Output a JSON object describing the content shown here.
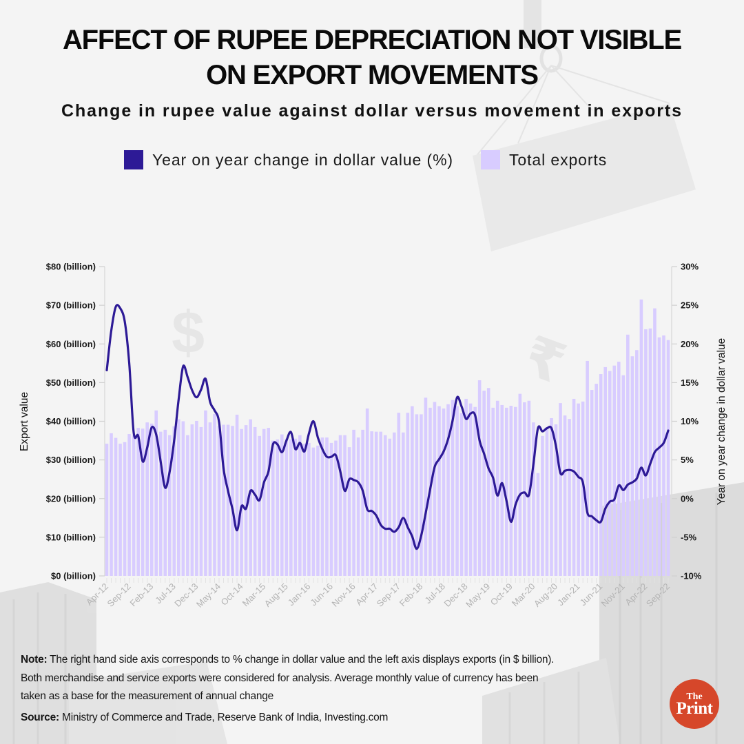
{
  "header": {
    "title_line1": "AFFECT OF RUPEE DEPRECIATION NOT VISIBLE",
    "title_line2": "ON EXPORT MOVEMENTS",
    "subtitle": "Change in rupee value against dollar versus movement in exports"
  },
  "legend": [
    {
      "label": "Year on year change in dollar value (%)",
      "color": "#2d1a96"
    },
    {
      "label": "Total exports",
      "color": "#d8ccff"
    }
  ],
  "decor": {
    "dollar_icon": "$",
    "rupee_icon": "₹"
  },
  "chart_data": {
    "type": "bar",
    "title": "Change in rupee value against dollar versus movement in exports",
    "xlabel": "",
    "ylabel": "Export value",
    "ylabel_right": "Year on year change in dollar value",
    "grid": false,
    "legend_position": "top",
    "y_left": {
      "range": [
        0,
        80
      ],
      "ticks": [
        0,
        10,
        20,
        30,
        40,
        50,
        60,
        70,
        80
      ],
      "tick_labels": [
        "$0 (billion)",
        "$10 (billion)",
        "$20 (billion)",
        "$30 (billion)",
        "$40 (billion)",
        "$50 (billion)",
        "$60 (billion)",
        "$70 (billion)",
        "$80 (billion)"
      ]
    },
    "y_right": {
      "range": [
        -10,
        30
      ],
      "ticks": [
        -10,
        -5,
        0,
        5,
        10,
        15,
        20,
        25,
        30
      ],
      "tick_labels": [
        "-10%",
        "-5%",
        "0%",
        "5%",
        "10%",
        "15%",
        "20%",
        "25%",
        "30%"
      ]
    },
    "xtick_labels": [
      "Apr-12",
      "Sep-12",
      "Feb-13",
      "Jul-13",
      "Dec-13",
      "May-14",
      "Oct-14",
      "Mar-15",
      "Aug-15",
      "Jan-16",
      "Jun-16",
      "Nov-16",
      "Apr-17",
      "Sep-17",
      "Feb-18",
      "Jul-18",
      "Dec-18",
      "May-19",
      "Oct-19",
      "Mar-20",
      "Aug-20",
      "Jan-21",
      "Jun-21",
      "Nov-21",
      "Apr-22",
      "Sep-22"
    ],
    "x": [
      "Apr-12",
      "May-12",
      "Jun-12",
      "Jul-12",
      "Aug-12",
      "Sep-12",
      "Oct-12",
      "Nov-12",
      "Dec-12",
      "Jan-13",
      "Feb-13",
      "Mar-13",
      "Apr-13",
      "May-13",
      "Jun-13",
      "Jul-13",
      "Aug-13",
      "Sep-13",
      "Oct-13",
      "Nov-13",
      "Dec-13",
      "Jan-14",
      "Feb-14",
      "Mar-14",
      "Apr-14",
      "May-14",
      "Jun-14",
      "Jul-14",
      "Aug-14",
      "Sep-14",
      "Oct-14",
      "Nov-14",
      "Dec-14",
      "Jan-15",
      "Feb-15",
      "Mar-15",
      "Apr-15",
      "May-15",
      "Jun-15",
      "Jul-15",
      "Aug-15",
      "Sep-15",
      "Oct-15",
      "Nov-15",
      "Dec-15",
      "Jan-16",
      "Feb-16",
      "Mar-16",
      "Apr-16",
      "May-16",
      "Jun-16",
      "Jul-16",
      "Aug-16",
      "Sep-16",
      "Oct-16",
      "Nov-16",
      "Dec-16",
      "Jan-17",
      "Feb-17",
      "Mar-17",
      "Apr-17",
      "May-17",
      "Jun-17",
      "Jul-17",
      "Aug-17",
      "Sep-17",
      "Oct-17",
      "Nov-17",
      "Dec-17",
      "Jan-18",
      "Feb-18",
      "Mar-18",
      "Apr-18",
      "May-18",
      "Jun-18",
      "Jul-18",
      "Aug-18",
      "Sep-18",
      "Oct-18",
      "Nov-18",
      "Dec-18",
      "Jan-19",
      "Feb-19",
      "Mar-19",
      "Apr-19",
      "May-19",
      "Jun-19",
      "Jul-19",
      "Aug-19",
      "Sep-19",
      "Oct-19",
      "Nov-19",
      "Dec-19",
      "Jan-20",
      "Feb-20",
      "Mar-20",
      "Apr-20",
      "May-20",
      "Jun-20",
      "Jul-20",
      "Aug-20",
      "Sep-20",
      "Oct-20",
      "Nov-20",
      "Dec-20",
      "Jan-21",
      "Feb-21",
      "Mar-21",
      "Apr-21",
      "May-21",
      "Jun-21",
      "Jul-21",
      "Aug-21",
      "Sep-21",
      "Oct-21",
      "Nov-21",
      "Dec-21",
      "Jan-22",
      "Feb-22",
      "Mar-22",
      "Apr-22",
      "May-22",
      "Jun-22",
      "Jul-22",
      "Aug-22",
      "Sep-22"
    ],
    "series": [
      {
        "name": "Total exports",
        "type": "bar",
        "axis": "left",
        "unit": "$ billion",
        "color": "#d8ccff",
        "values": [
          34.2,
          36.9,
          35.7,
          34.2,
          34.6,
          36.7,
          36.4,
          38.3,
          38.1,
          39.7,
          39.4,
          42.8,
          37.3,
          37.8,
          36.4,
          38.7,
          40.5,
          40.0,
          36.4,
          39.2,
          40.1,
          38.5,
          42.8,
          39.7,
          41.9,
          38.8,
          39.1,
          39.1,
          38.8,
          41.7,
          38.0,
          39.0,
          40.5,
          38.5,
          36.2,
          38.0,
          38.3,
          35.0,
          35.3,
          36.6,
          35.5,
          35.3,
          35.5,
          36.4,
          34.2,
          34.4,
          33.2,
          33.7,
          35.8,
          35.8,
          34.4,
          35.0,
          36.4,
          36.4,
          33.3,
          37.8,
          35.8,
          37.8,
          43.3,
          37.4,
          37.3,
          37.3,
          36.4,
          35.5,
          37.1,
          42.2,
          37.1,
          42.2,
          43.9,
          41.8,
          41.8,
          46.1,
          43.5,
          45.0,
          43.9,
          43.3,
          44.4,
          45.5,
          43.9,
          42.1,
          45.8,
          44.6,
          43.7,
          50.6,
          47.9,
          48.6,
          43.5,
          45.3,
          44.2,
          43.5,
          44.0,
          43.7,
          47.1,
          44.9,
          45.3,
          39.7,
          26.6,
          36.2,
          38.5,
          40.8,
          39.2,
          44.7,
          41.5,
          40.6,
          45.8,
          44.6,
          45.1,
          55.6,
          48.1,
          49.7,
          52.2,
          54.0,
          53.0,
          54.4,
          55.4,
          51.9,
          62.4,
          56.8,
          58.4,
          71.5,
          63.8,
          64.0,
          69.2,
          61.7,
          62.2,
          61.0
        ]
      },
      {
        "name": "Year on year change in dollar value (%)",
        "type": "line",
        "axis": "right",
        "unit": "%",
        "color": "#2d1a96",
        "values": [
          16.6,
          21.7,
          24.8,
          24.6,
          22.9,
          17.5,
          8.5,
          8.1,
          4.8,
          6.6,
          9.2,
          8.3,
          4.8,
          1.4,
          3.5,
          7.5,
          12.8,
          17.1,
          15.7,
          14.0,
          13.1,
          14.1,
          15.5,
          12.5,
          11.4,
          9.9,
          3.9,
          1.0,
          -1.4,
          -4.1,
          -1.0,
          -1.3,
          1.0,
          0.5,
          -0.2,
          2.1,
          3.5,
          7.0,
          7.0,
          6.0,
          7.5,
          8.6,
          6.4,
          7.2,
          6.1,
          8.4,
          10.0,
          7.9,
          6.4,
          5.4,
          5.4,
          5.6,
          3.5,
          1.0,
          2.5,
          2.4,
          2.1,
          1.0,
          -1.4,
          -1.6,
          -2.2,
          -3.4,
          -3.9,
          -3.9,
          -4.3,
          -3.7,
          -2.5,
          -3.7,
          -4.9,
          -6.5,
          -4.8,
          -1.9,
          1.2,
          4.1,
          5.1,
          6.1,
          7.7,
          10.1,
          13.1,
          11.9,
          10.3,
          11.0,
          10.8,
          7.5,
          5.8,
          3.9,
          2.7,
          0.4,
          2.0,
          -0.3,
          -3.0,
          -0.8,
          0.5,
          0.8,
          0.5,
          4.5,
          9.1,
          8.7,
          9.1,
          9.1,
          6.8,
          3.3,
          3.6,
          3.7,
          3.5,
          2.8,
          2.1,
          -1.8,
          -2.3,
          -2.8,
          -3.0,
          -1.3,
          -0.4,
          -0.1,
          1.7,
          1.1,
          1.8,
          2.1,
          2.6,
          4.0,
          3.0,
          4.5,
          6.0,
          6.6,
          7.2,
          8.8
        ]
      }
    ]
  },
  "footer": {
    "note_label": "Note:",
    "note_lines": [
      "The right hand side axis corresponds to % change in dollar value and the left axis displays exports (in $ billion).",
      "Both merchandise and service exports were considered for analysis. Average monthly value of currency has been",
      "taken as a base for the measurement of annual change"
    ],
    "source_label": "Source:",
    "source_text": "Ministry of Commerce and Trade, Reserve Bank of India, Investing.com"
  },
  "logo": {
    "line1": "The",
    "line2": "Print",
    "color": "#d6472a"
  }
}
